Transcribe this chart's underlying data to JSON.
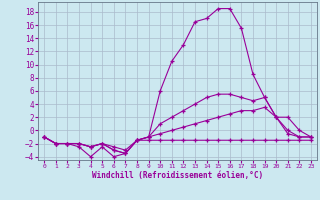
{
  "title": "",
  "xlabel": "Windchill (Refroidissement éolien,°C)",
  "background_color": "#cce8f0",
  "line_color": "#990099",
  "grid_color": "#aabbcc",
  "xlim": [
    -0.5,
    23.5
  ],
  "ylim": [
    -4.5,
    19.5
  ],
  "xticks": [
    0,
    1,
    2,
    3,
    4,
    5,
    6,
    7,
    8,
    9,
    10,
    11,
    12,
    13,
    14,
    15,
    16,
    17,
    18,
    19,
    20,
    21,
    22,
    23
  ],
  "yticks": [
    -4,
    -2,
    0,
    2,
    4,
    6,
    8,
    10,
    12,
    14,
    16,
    18
  ],
  "line1_x": [
    0,
    1,
    2,
    3,
    4,
    5,
    6,
    7,
    8,
    9,
    10,
    11,
    12,
    13,
    14,
    15,
    16,
    17,
    18,
    19,
    20,
    21,
    22,
    23
  ],
  "line1_y": [
    -1,
    -2,
    -2,
    -2.5,
    -4,
    -2.5,
    -4,
    -3.5,
    -1.5,
    -1.5,
    -1.5,
    -1.5,
    -1.5,
    -1.5,
    -1.5,
    -1.5,
    -1.5,
    -1.5,
    -1.5,
    -1.5,
    -1.5,
    -1.5,
    -1.5,
    -1.5
  ],
  "line2_x": [
    0,
    1,
    2,
    3,
    4,
    5,
    6,
    7,
    8,
    9,
    10,
    11,
    12,
    13,
    14,
    15,
    16,
    17,
    18,
    19,
    20,
    21,
    22,
    23
  ],
  "line2_y": [
    -1,
    -2,
    -2,
    -2,
    -2.5,
    -2,
    -2.5,
    -3,
    -1.5,
    -1,
    -0.5,
    0,
    0.5,
    1,
    1.5,
    2,
    2.5,
    3,
    3,
    3.5,
    2,
    -0.5,
    -1,
    -1
  ],
  "line3_x": [
    0,
    1,
    2,
    3,
    4,
    5,
    6,
    7,
    8,
    9,
    10,
    11,
    12,
    13,
    14,
    15,
    16,
    17,
    18,
    19,
    20,
    21,
    22,
    23
  ],
  "line3_y": [
    -1,
    -2,
    -2,
    -2,
    -2.5,
    -2,
    -3,
    -3.5,
    -1.5,
    -1,
    1,
    2,
    3,
    4,
    5,
    5.5,
    5.5,
    5,
    4.5,
    5,
    2,
    2,
    0,
    -1
  ],
  "line4_x": [
    0,
    1,
    2,
    3,
    4,
    5,
    6,
    7,
    8,
    9,
    10,
    11,
    12,
    13,
    14,
    15,
    16,
    17,
    18,
    19,
    20,
    21,
    22,
    23
  ],
  "line4_y": [
    -1,
    -2,
    -2,
    -2,
    -2.5,
    -2,
    -3,
    -3.5,
    -1.5,
    -1,
    6,
    10.5,
    13,
    16.5,
    17,
    18.5,
    18.5,
    15.5,
    8.5,
    5,
    2,
    0,
    -1,
    -1
  ]
}
